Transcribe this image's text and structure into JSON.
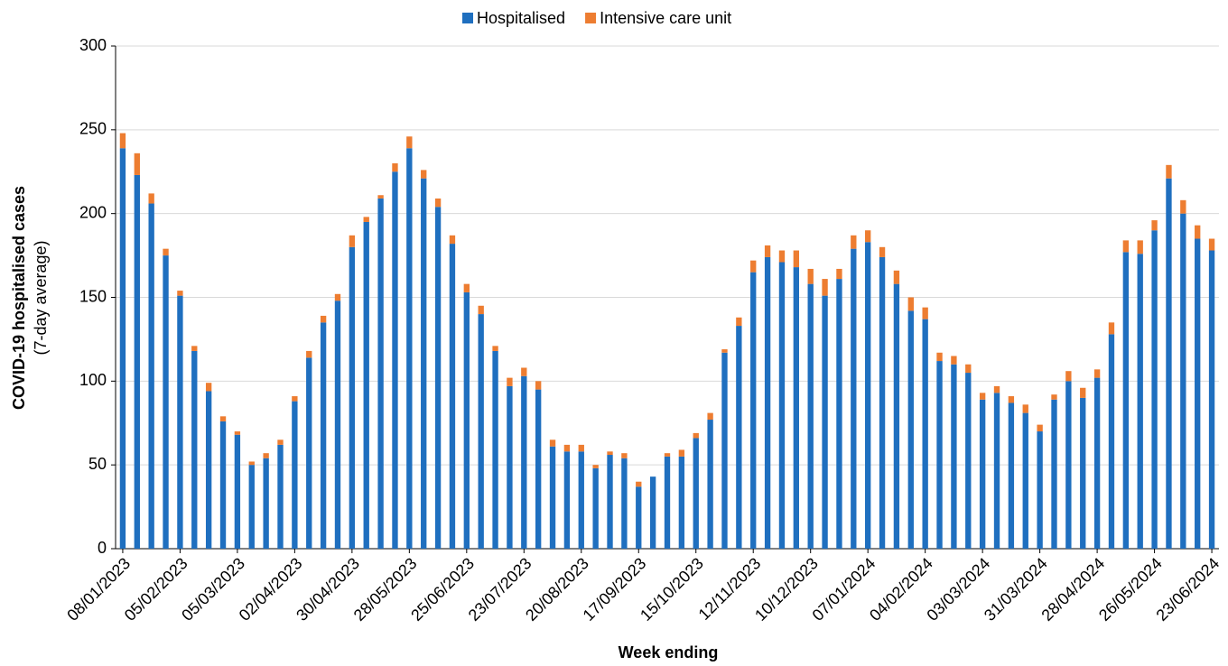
{
  "chart_data": {
    "type": "stacked_bar",
    "y_label": "COVID-19 hospitalised cases",
    "y_sublabel": "(7-day average)",
    "x_label": "Week ending",
    "categories": [
      "08/01/2023",
      null,
      null,
      null,
      "05/02/2023",
      null,
      null,
      null,
      "05/03/2023",
      null,
      null,
      null,
      "02/04/2023",
      null,
      null,
      null,
      "30/04/2023",
      null,
      null,
      null,
      "28/05/2023",
      null,
      null,
      null,
      "25/06/2023",
      null,
      null,
      null,
      "23/07/2023",
      null,
      null,
      null,
      "20/08/2023",
      null,
      null,
      null,
      "17/09/2023",
      null,
      null,
      null,
      "15/10/2023",
      null,
      null,
      null,
      "12/11/2023",
      null,
      null,
      null,
      "10/12/2023",
      null,
      null,
      null,
      "07/01/2024",
      null,
      null,
      null,
      "04/02/2024",
      null,
      null,
      null,
      "03/03/2024",
      null,
      null,
      null,
      "31/03/2024",
      null,
      null,
      null,
      "28/04/2024",
      null,
      null,
      null,
      "26/05/2024",
      null,
      null,
      null,
      "23/06/2024"
    ],
    "series": [
      {
        "name": "Hospitalised",
        "color": "#1f6fbf",
        "values": [
          239,
          223,
          206,
          175,
          151,
          118,
          94,
          76,
          68,
          50,
          54,
          62,
          88,
          114,
          135,
          148,
          180,
          195,
          209,
          225,
          239,
          221,
          204,
          182,
          153,
          140,
          118,
          97,
          103,
          95,
          61,
          58,
          58,
          48,
          56,
          54,
          37,
          43,
          55,
          55,
          66,
          77,
          117,
          133,
          165,
          174,
          171,
          168,
          158,
          151,
          161,
          179,
          183,
          174,
          158,
          142,
          137,
          112,
          110,
          105,
          89,
          93,
          87,
          81,
          70,
          89,
          100,
          90,
          102,
          128,
          177,
          176,
          190,
          221,
          200,
          185,
          178
        ]
      },
      {
        "name": "Intensive care unit",
        "color": "#ed7d31",
        "values": [
          9,
          13,
          6,
          4,
          3,
          3,
          5,
          3,
          2,
          2,
          3,
          3,
          3,
          4,
          4,
          4,
          7,
          3,
          2,
          5,
          7,
          5,
          5,
          5,
          5,
          5,
          3,
          5,
          5,
          5,
          4,
          4,
          4,
          2,
          2,
          3,
          3,
          0,
          2,
          4,
          3,
          4,
          2,
          5,
          7,
          7,
          7,
          10,
          9,
          10,
          6,
          8,
          7,
          6,
          8,
          8,
          7,
          5,
          5,
          5,
          4,
          4,
          4,
          5,
          4,
          3,
          6,
          6,
          5,
          7,
          7,
          8,
          6,
          8,
          8,
          8,
          7
        ]
      }
    ],
    "ylim": [
      0,
      300
    ],
    "yticks": [
      0,
      50,
      100,
      150,
      200,
      250,
      300
    ],
    "grid": true
  }
}
